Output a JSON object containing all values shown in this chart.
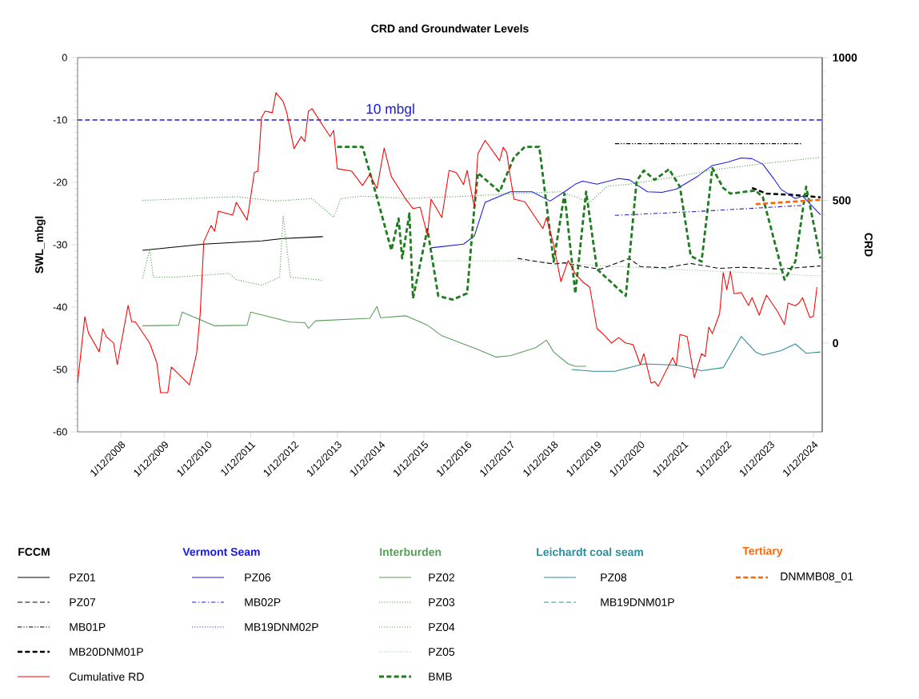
{
  "chart_data": {
    "type": "line",
    "title": "CRD and Groundwater Levels",
    "ylabel": "SWL_mbgl",
    "y2label": "CRD",
    "xlim": [
      "2007-12-01",
      "2025-02-15"
    ],
    "xticks": [
      {
        "value": "2008-12-01",
        "label": "1/12/2008"
      },
      {
        "value": "2009-12-01",
        "label": "1/12/2009"
      },
      {
        "value": "2010-12-01",
        "label": "1/12/2010"
      },
      {
        "value": "2011-12-01",
        "label": "1/12/2011"
      },
      {
        "value": "2012-12-01",
        "label": "1/12/2012"
      },
      {
        "value": "2013-12-01",
        "label": "1/12/2013"
      },
      {
        "value": "2014-12-01",
        "label": "1/12/2014"
      },
      {
        "value": "2015-12-01",
        "label": "1/12/2015"
      },
      {
        "value": "2016-12-01",
        "label": "1/12/2016"
      },
      {
        "value": "2017-12-01",
        "label": "1/12/2017"
      },
      {
        "value": "2018-12-01",
        "label": "1/12/2018"
      },
      {
        "value": "2019-12-01",
        "label": "1/12/2019"
      },
      {
        "value": "2020-12-01",
        "label": "1/12/2020"
      },
      {
        "value": "2021-12-01",
        "label": "1/12/2021"
      },
      {
        "value": "2022-12-01",
        "label": "1/12/2022"
      },
      {
        "value": "2023-12-01",
        "label": "1/12/2023"
      },
      {
        "value": "2024-12-01",
        "label": "1/12/2024"
      }
    ],
    "ylim": [
      -60,
      0
    ],
    "yticks": [
      -60,
      -50,
      -40,
      -30,
      -20,
      -10,
      0
    ],
    "y2lim": [
      -311,
      1000
    ],
    "y2ticks": [
      0,
      500,
      1000
    ],
    "marker": "none",
    "legend": "bottom",
    "annotations": [
      "FCCM",
      "Vermont Seam",
      "Interburden",
      "Leichardt coal seam",
      "Tertiary"
    ],
    "ref_lines": [
      {
        "axis": "y",
        "value": -10,
        "label": "10 mbgl",
        "color": "#1a1ae6",
        "line_style": "dashed"
      }
    ],
    "series": [
      {
        "name": "PZ01",
        "color": "#000000",
        "line_style": "solid",
        "x": [
          "2009-06",
          "2010-11",
          "2012-03",
          "2012-09",
          "2013-08"
        ],
        "values": [
          -30.9,
          -29.9,
          -29.4,
          -29.0,
          -28.7
        ]
      },
      {
        "name": "PZ07",
        "color": "#000000",
        "line_style": "dashed",
        "x": [
          "2018-02",
          "2018-12",
          "2019-03",
          "2019-10",
          "2020-01",
          "2020-09",
          "2020-12",
          "2021-07",
          "2022-02",
          "2022-10",
          "2023-04",
          "2024-03",
          "2025-02"
        ],
        "values": [
          -32.2,
          -33.1,
          -32.9,
          -33.7,
          -33.9,
          -32.2,
          -33.5,
          -33.7,
          -33.0,
          -33.8,
          -33.6,
          -33.9,
          -33.4
        ]
      },
      {
        "name": "MB01P",
        "color": "#000000",
        "line_style": "dashdotdot",
        "x": [
          "2020-05",
          "2022-07",
          "2024-09"
        ],
        "values": [
          -13.8,
          -13.8,
          -13.8
        ]
      },
      {
        "name": "MB20DNM01P",
        "color": "#000000",
        "line_style": "dashed",
        "x": [
          "2023-07",
          "2023-11",
          "2024-06",
          "2025-02"
        ],
        "values": [
          -20.9,
          -21.8,
          -22.0,
          -22.4
        ]
      },
      {
        "name": "Cumulative RD",
        "color": "#ff0000",
        "line_style": "solid",
        "axis": "y2",
        "x": [
          "2007-12",
          "2008-02",
          "2008-03",
          "2008-06",
          "2008-07",
          "2008-08",
          "2008-10",
          "2008-11",
          "2009-02",
          "2009-03",
          "2009-04",
          "2009-08",
          "2009-10",
          "2009-11",
          "2010-01",
          "2010-02",
          "2010-07",
          "2010-09",
          "2010-10",
          "2010-11",
          "2011-01",
          "2011-02",
          "2011-03",
          "2011-07",
          "2011-08",
          "2011-11",
          "2011-12",
          "2012-01",
          "2012-02",
          "2012-03",
          "2012-04",
          "2012-06",
          "2012-07",
          "2012-09",
          "2012-10",
          "2012-12",
          "2013-02",
          "2013-03",
          "2013-04",
          "2013-05",
          "2013-08",
          "2013-10",
          "2013-11",
          "2013-12",
          "2014-04",
          "2014-07",
          "2014-09",
          "2014-11",
          "2015-01",
          "2015-03",
          "2015-07",
          "2015-09",
          "2015-11",
          "2016-01",
          "2016-02",
          "2016-05",
          "2016-07",
          "2016-09",
          "2016-11",
          "2016-12",
          "2017-02",
          "2017-03",
          "2017-05",
          "2017-09",
          "2017-10",
          "2017-11",
          "2017-12",
          "2018-01",
          "2018-04",
          "2018-09",
          "2018-10",
          "2018-12",
          "2019-02",
          "2019-04",
          "2019-06",
          "2019-08",
          "2019-10",
          "2019-12",
          "2020-02",
          "2020-04",
          "2020-06",
          "2020-08",
          "2020-10",
          "2020-12",
          "2021-01",
          "2021-03",
          "2021-04",
          "2021-05",
          "2021-09",
          "2021-10",
          "2021-11",
          "2022-01",
          "2022-03",
          "2022-05",
          "2022-06",
          "2022-07",
          "2022-08",
          "2022-10",
          "2022-11",
          "2022-12",
          "2023-01",
          "2023-02",
          "2023-04",
          "2023-06",
          "2023-07",
          "2023-09",
          "2023-10",
          "2023-11",
          "2024-02",
          "2024-04",
          "2024-05",
          "2024-07",
          "2024-08",
          "2024-09",
          "2024-11",
          "2024-12",
          "2025-01"
        ],
        "values": [
          -140,
          92,
          36,
          -31,
          50,
          22,
          0,
          -75,
          132,
          75,
          75,
          0,
          -70,
          -174,
          -174,
          -84,
          -146,
          -36,
          104,
          356,
          412,
          392,
          462,
          448,
          493,
          431,
          513,
          597,
          602,
          790,
          812,
          807,
          877,
          846,
          807,
          681,
          723,
          706,
          812,
          821,
          762,
          724,
          745,
          611,
          602,
          552,
          591,
          541,
          683,
          583,
          504,
          471,
          476,
          378,
          504,
          440,
          605,
          597,
          555,
          605,
          476,
          664,
          710,
          639,
          686,
          667,
          579,
          504,
          495,
          401,
          439,
          345,
          215,
          289,
          243,
          215,
          196,
          51,
          28,
          0,
          19,
          0,
          -5,
          -75,
          -37,
          -140,
          -135,
          -151,
          -51,
          -79,
          30,
          23,
          -121,
          -37,
          -47,
          56,
          33,
          103,
          247,
          187,
          252,
          173,
          177,
          132,
          159,
          98,
          135,
          168,
          112,
          65,
          140,
          131,
          140,
          159,
          90,
          93,
          196
        ]
      },
      {
        "name": "PZ06",
        "color": "#1a1ae6",
        "line_style": "solid",
        "x": [
          "2016-02",
          "2016-11",
          "2017-02",
          "2017-05",
          "2017-12",
          "2018-06",
          "2018-11",
          "2019-03",
          "2019-06",
          "2019-08",
          "2019-12",
          "2020-06",
          "2020-09",
          "2021-02",
          "2021-06",
          "2021-10",
          "2022-04",
          "2022-08",
          "2022-12",
          "2023-04",
          "2023-07",
          "2023-10",
          "2024-01",
          "2024-03",
          "2024-07",
          "2024-09",
          "2025-02"
        ],
        "values": [
          -30.5,
          -29.9,
          -28.6,
          -23.2,
          -21.5,
          -21.5,
          -23.0,
          -21.5,
          -20.3,
          -19.8,
          -20.3,
          -19.4,
          -19.6,
          -21.5,
          -21.6,
          -21.1,
          -19.0,
          -17.3,
          -16.8,
          -16.1,
          -16.2,
          -17.1,
          -19.4,
          -21.1,
          -22.6,
          -22.2,
          -25.2
        ]
      },
      {
        "name": "MB02P",
        "color": "#1a1ae6",
        "line_style": "dashdot",
        "x": [
          "2020-05",
          "2022-06",
          "2024-09"
        ],
        "values": [
          -25.3,
          -24.6,
          -23.7
        ]
      },
      {
        "name": "MB19DNM02P",
        "color": "#1a1ae6",
        "line_style": "dotted"
      },
      {
        "name": "PZ02",
        "color": "#5a9e5a",
        "line_style": "solid",
        "x": [
          "2009-06",
          "2010-04",
          "2010-05",
          "2011-02",
          "2011-11",
          "2011-12",
          "2012-11",
          "2013-03",
          "2013-04",
          "2013-06",
          "2014-09",
          "2014-11",
          "2014-12",
          "2015-07",
          "2016-01",
          "2016-05",
          "2017-03",
          "2017-08",
          "2017-12",
          "2018-07",
          "2018-10",
          "2018-12",
          "2019-04",
          "2019-06",
          "2019-09"
        ],
        "values": [
          -43.0,
          -42.9,
          -40.8,
          -43.0,
          -42.9,
          -40.8,
          -42.4,
          -42.5,
          -43.4,
          -42.2,
          -41.8,
          -39.9,
          -41.7,
          -41.4,
          -42.9,
          -44.6,
          -46.8,
          -48.0,
          -47.8,
          -46.5,
          -45.3,
          -47.2,
          -49.1,
          -49.5,
          -49.5
        ]
      },
      {
        "name": "PZ03",
        "color": "#3c9a3c",
        "line_style": "dotted",
        "x": [
          "2009-06",
          "2011-08",
          "2012-07",
          "2013-05",
          "2013-11",
          "2014-01",
          "2014-07",
          "2015-07",
          "2017-01",
          "2018-01",
          "2019-02",
          "2019-10",
          "2020-03",
          "2020-09",
          "2021-11",
          "2022-07",
          "2023-10",
          "2025-02"
        ],
        "values": [
          -22.9,
          -22.3,
          -23.0,
          -22.6,
          -25.6,
          -22.6,
          -22.2,
          -22.6,
          -22.2,
          -21.8,
          -21.5,
          -23.2,
          -20.6,
          -20.3,
          -19.0,
          -18.1,
          -17.0,
          -16.0
        ]
      },
      {
        "name": "PZ04",
        "color": "#3c9a3c",
        "line_style": "dotted",
        "x": [
          "2009-06",
          "2009-08",
          "2009-09",
          "2010-03",
          "2011-06",
          "2011-08",
          "2012-03",
          "2012-08",
          "2012-09",
          "2012-11",
          "2013-08"
        ],
        "values": [
          -35.4,
          -30.7,
          -35.2,
          -35.2,
          -34.6,
          -35.6,
          -36.5,
          -35.2,
          -25.4,
          -35.2,
          -35.7
        ]
      },
      {
        "name": "PZ05",
        "color": "#8cc08c",
        "line_style": "dotted",
        "x": [
          "2016-02",
          "2018-02",
          "2021-07",
          "2025-02"
        ],
        "values": [
          -32.6,
          -32.6,
          -33.9,
          -35.0
        ]
      },
      {
        "name": "BMB",
        "color": "#1e7b1e",
        "line_style": "dashed",
        "x": [
          "2013-12",
          "2014-07",
          "2014-11",
          "2015-03",
          "2015-05",
          "2015-06",
          "2015-08",
          "2015-09",
          "2016-01",
          "2016-04",
          "2016-08",
          "2016-12",
          "2017-02",
          "2017-03",
          "2017-09",
          "2018-01",
          "2018-04",
          "2018-08",
          "2018-12",
          "2019-03",
          "2019-06",
          "2019-09",
          "2019-12",
          "2020-08",
          "2020-11",
          "2021-01",
          "2021-04",
          "2021-08",
          "2021-11",
          "2022-02",
          "2022-05",
          "2022-08",
          "2022-11",
          "2023-01",
          "2023-08",
          "2023-10",
          "2024-04",
          "2024-07",
          "2024-10",
          "2025-02"
        ],
        "values": [
          -14.3,
          -14.3,
          -22.4,
          -30.9,
          -25.8,
          -32.2,
          -25.0,
          -38.6,
          -27.5,
          -38.2,
          -38.8,
          -37.8,
          -24.1,
          -18.5,
          -21.5,
          -16.0,
          -14.3,
          -14.3,
          -32.7,
          -21.8,
          -37.8,
          -21.5,
          -33.9,
          -38.2,
          -19.8,
          -18.1,
          -19.6,
          -17.9,
          -20.7,
          -31.8,
          -32.7,
          -17.7,
          -20.9,
          -21.8,
          -21.3,
          -22.4,
          -35.6,
          -32.7,
          -20.7,
          -32.2
        ]
      },
      {
        "name": "PZ08",
        "color": "#2e8b9a",
        "line_style": "solid",
        "x": [
          "2019-05",
          "2019-11",
          "2020-05",
          "2021-01",
          "2021-10",
          "2022-05",
          "2022-11",
          "2023-04",
          "2023-08",
          "2023-10",
          "2024-03",
          "2024-07",
          "2024-10",
          "2025-02"
        ],
        "values": [
          -50.0,
          -50.3,
          -50.3,
          -49.1,
          -49.3,
          -50.2,
          -49.7,
          -44.7,
          -47.2,
          -47.7,
          -47.0,
          -45.9,
          -47.4,
          -47.2
        ]
      },
      {
        "name": "MB19DNM01P",
        "color": "#2e8b9a",
        "line_style": "dashed"
      },
      {
        "name": "DNMMB08_01",
        "color": "#ff6600",
        "line_style": "dashed",
        "x": [
          "2023-08",
          "2025-02"
        ],
        "values": [
          -23.5,
          -22.8
        ]
      }
    ]
  }
}
